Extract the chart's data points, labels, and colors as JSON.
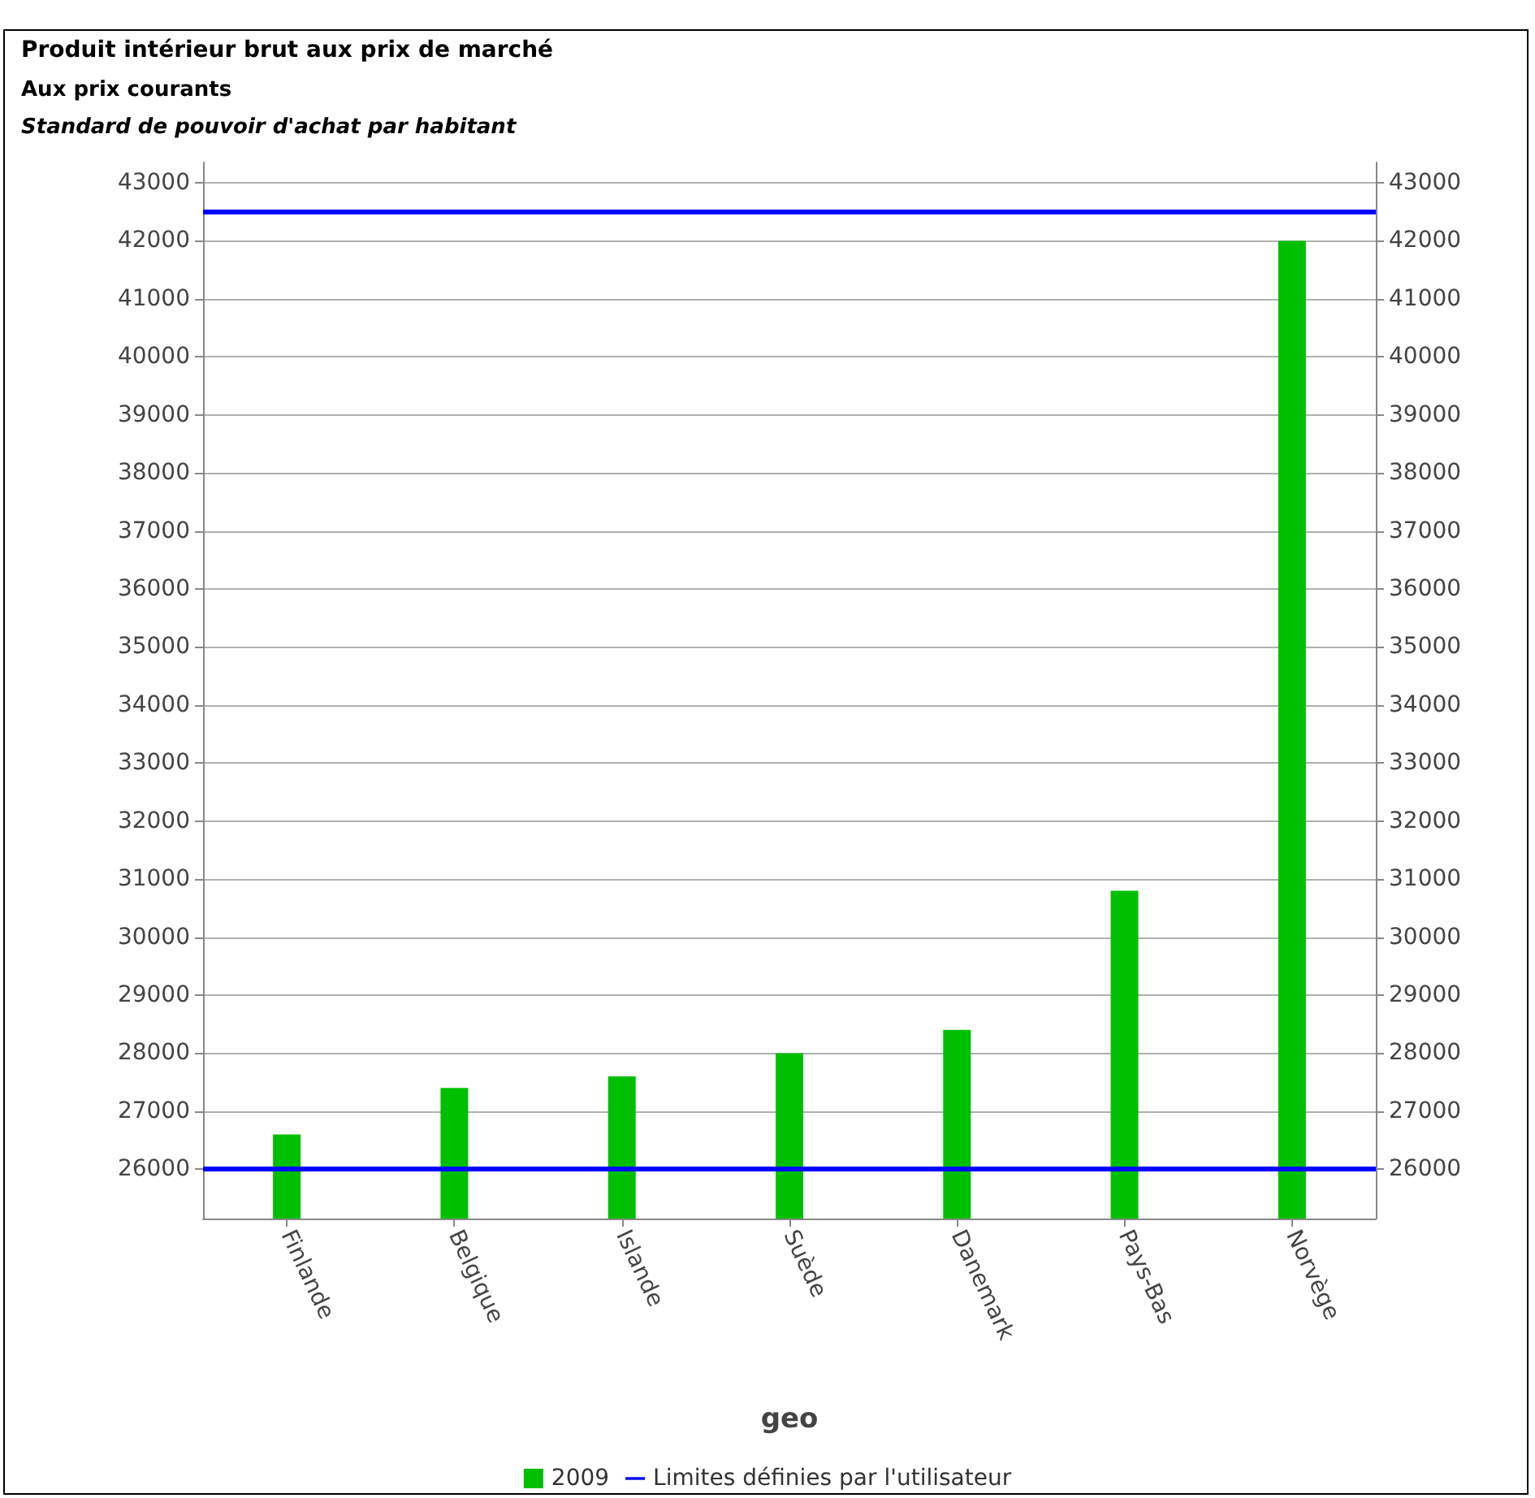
{
  "chart_data": {
    "type": "bar",
    "title": "Produit intérieur brut aux prix de marché",
    "subtitle": "Aux prix courants",
    "annotations": [
      "Standard de pouvoir d'achat par habitant"
    ],
    "xlabel": "geo",
    "categories": [
      "Finlande",
      "Belgique",
      "Islande",
      "Suède",
      "Danemark",
      "Pays-Bas",
      "Norvège"
    ],
    "series": [
      {
        "name": "2009",
        "color": "#00bf00",
        "values": [
          26600,
          27400,
          27600,
          28000,
          28400,
          30800,
          42000
        ]
      }
    ],
    "ylim": [
      25150,
      43350
    ],
    "yticks": [
      26000,
      27000,
      28000,
      29000,
      30000,
      31000,
      32000,
      33000,
      34000,
      35000,
      36000,
      37000,
      38000,
      39000,
      40000,
      41000,
      42000,
      43000
    ],
    "y2lim": [
      25150,
      43350
    ],
    "y2ticks": [
      26000,
      27000,
      28000,
      29000,
      30000,
      31000,
      32000,
      33000,
      34000,
      35000,
      36000,
      37000,
      38000,
      39000,
      40000,
      41000,
      42000,
      43000
    ],
    "ref_lines": [
      {
        "axis": "y",
        "value": 42500,
        "label": "Limites définies par l'utilisateur",
        "color": "#0000ff"
      },
      {
        "axis": "y",
        "value": 26000,
        "color": "#0000ff"
      }
    ],
    "grid": "y",
    "legend": "bottom"
  }
}
